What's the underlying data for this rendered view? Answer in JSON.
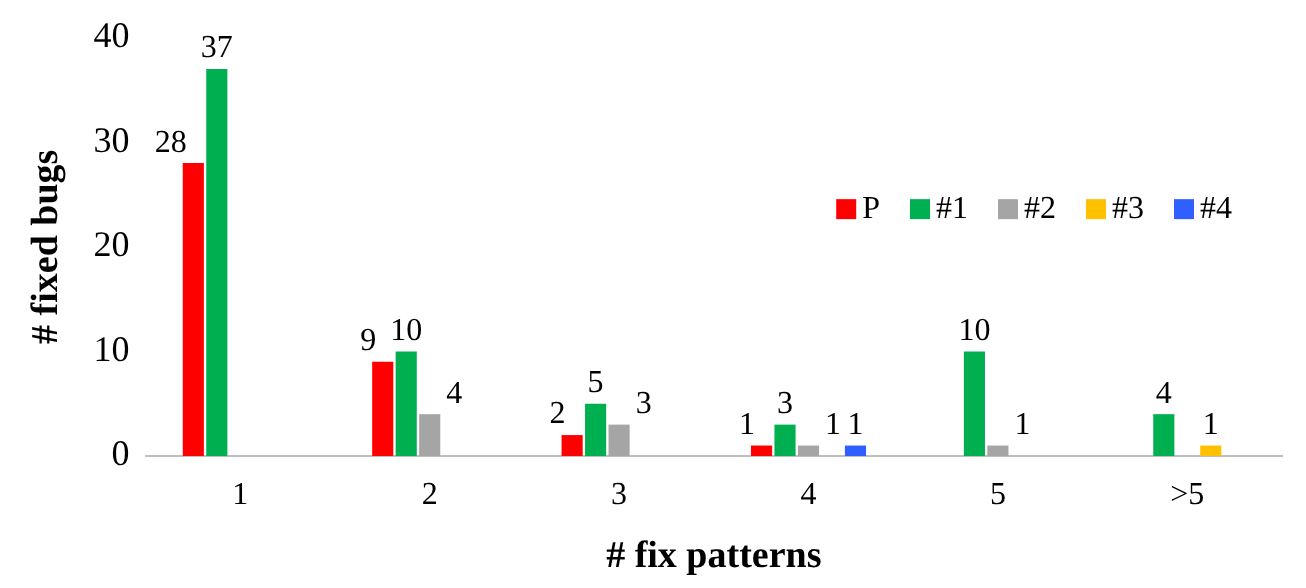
{
  "chart_data": {
    "type": "bar",
    "xlabel": "# fix patterns",
    "ylabel": "# fixed bugs",
    "categories": [
      "1",
      "2",
      "3",
      "4",
      "5",
      ">5"
    ],
    "series": [
      {
        "name": "P",
        "color": "#ff0000",
        "values": [
          28,
          9,
          2,
          1,
          null,
          null
        ]
      },
      {
        "name": "#1",
        "color": "#00b050",
        "values": [
          37,
          10,
          5,
          3,
          10,
          4
        ]
      },
      {
        "name": "#2",
        "color": "#a5a5a5",
        "values": [
          null,
          4,
          3,
          1,
          1,
          null
        ]
      },
      {
        "name": "#3",
        "color": "#ffc000",
        "values": [
          null,
          null,
          null,
          null,
          null,
          1
        ]
      },
      {
        "name": "#4",
        "color": "#2f5fff",
        "values": [
          null,
          null,
          null,
          1,
          null,
          null
        ]
      }
    ],
    "ylim": [
      0,
      40
    ],
    "yticks": [
      0,
      10,
      20,
      30,
      40
    ],
    "grid": false,
    "legend": "top right",
    "data_labels": true
  }
}
